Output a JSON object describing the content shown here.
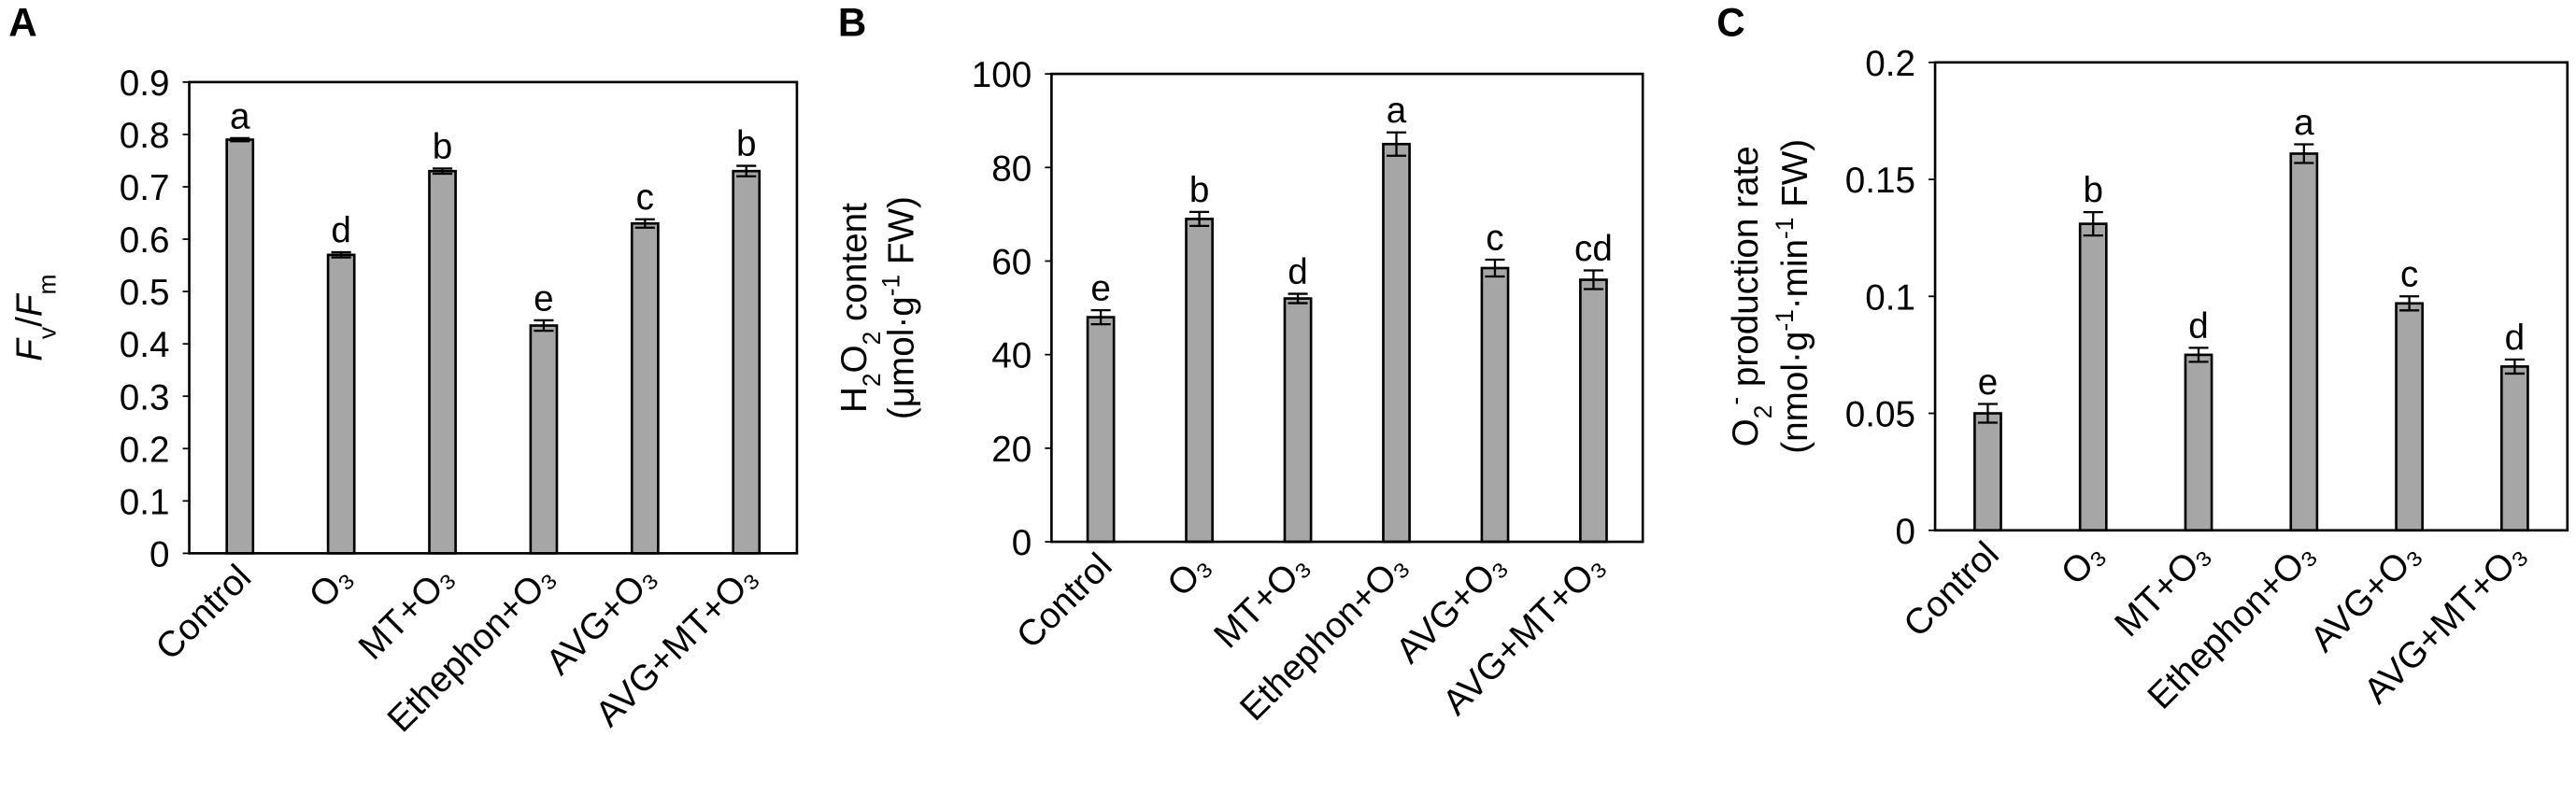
{
  "chart_data": [
    {
      "type": "bar",
      "panel_label": "A",
      "y_label": [
        [
          "F",
          "v",
          "/",
          "F",
          "m"
        ]
      ],
      "categories": [
        "Control",
        "O₃",
        "MT+O₃",
        "Ethephon+O₃",
        "AVG+O₃",
        "AVG+MT+O₃"
      ],
      "values": [
        0.79,
        0.57,
        0.73,
        0.435,
        0.63,
        0.73
      ],
      "errors": [
        0.003,
        0.005,
        0.005,
        0.01,
        0.008,
        0.01
      ],
      "labels": [
        "a",
        "d",
        "b",
        "e",
        "c",
        "b"
      ],
      "color": "#a6a6a6",
      "ylim": [
        0,
        0.9
      ],
      "yticks": [
        0,
        0.1,
        0.2,
        0.3,
        0.4,
        0.5,
        0.6,
        0.7,
        0.8,
        0.9
      ]
    },
    {
      "type": "bar",
      "panel_label": "B",
      "y_label": [
        [
          "H",
          "2",
          "O",
          "2",
          " content"
        ],
        [
          "(μmol·g",
          "-1",
          " FW)"
        ]
      ],
      "categories": [
        "Control",
        "O₃",
        "MT+O₃",
        "Ethephon+O₃",
        "AVG+O₃",
        "AVG+MT+O₃"
      ],
      "values": [
        48,
        69,
        52,
        85,
        58.5,
        56
      ],
      "errors": [
        1.5,
        1.5,
        1,
        2.5,
        1.8,
        2
      ],
      "labels": [
        "e",
        "b",
        "d",
        "a",
        "c",
        "cd"
      ],
      "color": "#a6a6a6",
      "ylim": [
        0,
        100
      ],
      "yticks": [
        0,
        20,
        40,
        60,
        80,
        100
      ]
    },
    {
      "type": "bar",
      "panel_label": "C",
      "y_label": [
        [
          "O",
          "2",
          "-",
          " production rate"
        ],
        [
          "(nmol·g",
          "-1",
          "·min",
          "-1",
          " FW)"
        ]
      ],
      "categories": [
        "Control",
        "O₃",
        "MT+O₃",
        "Ethephon+O₃",
        "AVG+O₃",
        "AVG+MT+O₃"
      ],
      "values": [
        0.05,
        0.131,
        0.075,
        0.161,
        0.097,
        0.07
      ],
      "errors": [
        0.004,
        0.005,
        0.003,
        0.004,
        0.003,
        0.003
      ],
      "labels": [
        "e",
        "b",
        "d",
        "a",
        "c",
        "d"
      ],
      "color": "#a6a6a6",
      "ylim": [
        0,
        0.2
      ],
      "yticks": [
        0,
        0.05,
        0.1,
        0.15,
        0.2
      ]
    }
  ]
}
